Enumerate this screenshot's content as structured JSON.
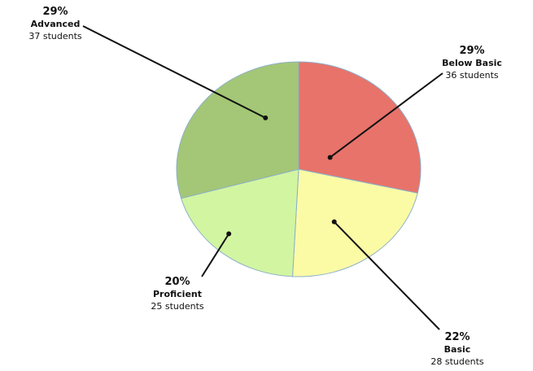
{
  "chart_data": {
    "type": "pie",
    "title": "",
    "slices": [
      {
        "label": "Below Basic",
        "percent": 29,
        "count_text": "36 students",
        "students": 36,
        "color": "#e8736a"
      },
      {
        "label": "Basic",
        "percent": 22,
        "count_text": "28 students",
        "students": 28,
        "color": "#fbfba6"
      },
      {
        "label": "Proficient",
        "percent": 20,
        "count_text": "25 students",
        "students": 25,
        "color": "#d2f5a2"
      },
      {
        "label": "Advanced",
        "percent": 29,
        "count_text": "37 students",
        "students": 37,
        "color": "#a3c776"
      }
    ],
    "start_angle_deg": 0,
    "direction": "clockwise",
    "grid": false,
    "legend": "none"
  }
}
